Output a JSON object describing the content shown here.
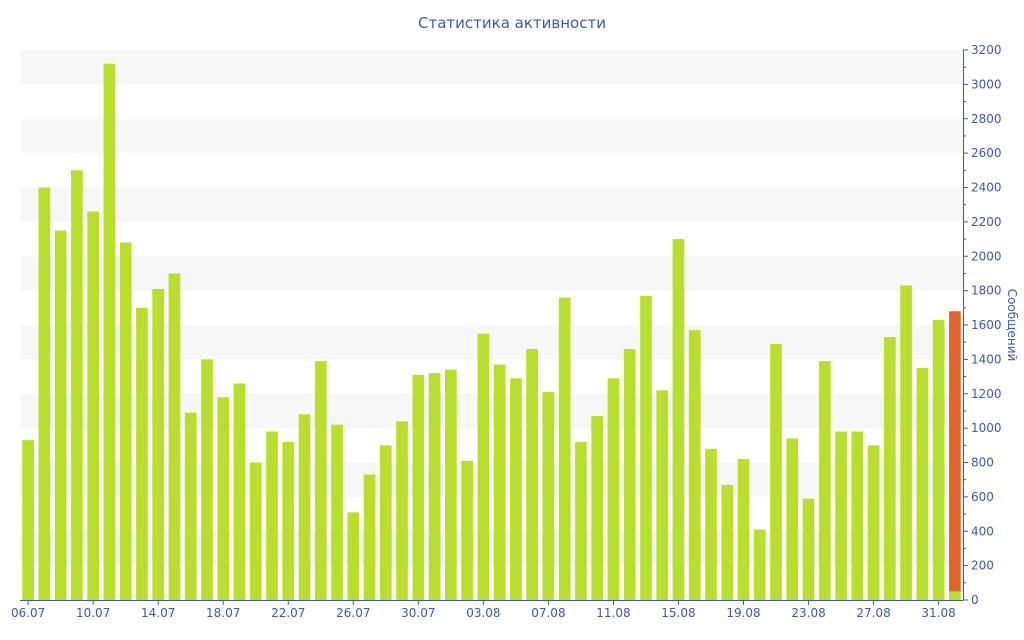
{
  "colors": {
    "bar": "#b7df2b",
    "highlight": "#e1652a",
    "band": "#f7f7f7",
    "axis": "#3e5aa0"
  },
  "chart_data": {
    "type": "bar",
    "title": "Статистика активности",
    "xlabel": "",
    "ylabel": "Сообщений",
    "y_axis_side": "right",
    "ylim": [
      0,
      3200
    ],
    "y_ticks": [
      0,
      200,
      400,
      600,
      800,
      1000,
      1200,
      1400,
      1600,
      1800,
      2000,
      2200,
      2400,
      2600,
      2800,
      3000,
      3200
    ],
    "grid": "alternating horizontal bands",
    "legend": "none",
    "categories": [
      "06.07",
      "07.07",
      "08.07",
      "09.07",
      "10.07",
      "11.07",
      "12.07",
      "13.07",
      "14.07",
      "15.07",
      "16.07",
      "17.07",
      "18.07",
      "19.07",
      "20.07",
      "21.07",
      "22.07",
      "23.07",
      "24.07",
      "25.07",
      "26.07",
      "27.07",
      "28.07",
      "29.07",
      "30.07",
      "31.07",
      "01.08",
      "02.08",
      "03.08",
      "04.08",
      "05.08",
      "06.08",
      "07.08",
      "08.08",
      "09.08",
      "10.08",
      "11.08",
      "12.08",
      "13.08",
      "14.08",
      "15.08",
      "16.08",
      "17.08",
      "18.08",
      "19.08",
      "20.08",
      "21.08",
      "22.08",
      "23.08",
      "24.08",
      "25.08",
      "26.08",
      "27.08",
      "28.08",
      "29.08",
      "30.08",
      "31.08",
      "01.09"
    ],
    "x_tick_labels": [
      "06.07",
      "10.07",
      "14.07",
      "18.07",
      "22.07",
      "26.07",
      "30.07",
      "03.08",
      "07.08",
      "11.08",
      "15.08",
      "19.08",
      "23.08",
      "27.08",
      "31.08"
    ],
    "values": [
      930,
      2400,
      2150,
      2500,
      2260,
      3120,
      2080,
      1700,
      1810,
      1900,
      1090,
      1400,
      1180,
      1260,
      800,
      980,
      920,
      1080,
      1390,
      1020,
      510,
      730,
      900,
      1040,
      1310,
      1320,
      1340,
      810,
      1550,
      1370,
      1290,
      1460,
      1210,
      1760,
      920,
      1070,
      1290,
      1460,
      1770,
      1220,
      2100,
      1570,
      880,
      670,
      820,
      410,
      1490,
      940,
      590,
      1390,
      980,
      980,
      900,
      1530,
      1830,
      1350,
      1630,
      1680
    ],
    "highlight_index": 57,
    "highlight_bottom_value": 50
  }
}
